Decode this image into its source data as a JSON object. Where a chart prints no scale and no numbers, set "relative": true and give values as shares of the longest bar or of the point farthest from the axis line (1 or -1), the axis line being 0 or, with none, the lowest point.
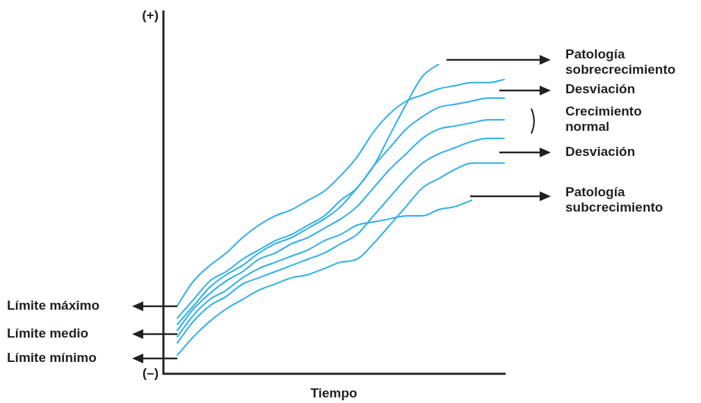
{
  "chart_data": {
    "type": "line",
    "relative": true,
    "xlabel": "Tiempo",
    "legend": false,
    "marker": "none",
    "line_style": "solid",
    "categories": [
      null,
      null,
      null,
      null,
      null,
      null,
      null,
      null,
      null,
      null,
      null,
      null,
      null,
      null,
      null,
      null,
      null,
      null,
      null,
      null,
      null
    ],
    "series": [
      {
        "color": "#38b2e8",
        "values": [
          0.22,
          0.3,
          0.35,
          0.39,
          0.44,
          0.48,
          0.51,
          0.53,
          0.56,
          0.59,
          0.64,
          0.7,
          0.78,
          0.84,
          0.88,
          0.9,
          0.92,
          0.93,
          0.94,
          0.94,
          0.95
        ]
      },
      {
        "color": "#38b2e8",
        "values": [
          0.18,
          0.24,
          0.3,
          0.33,
          0.37,
          0.4,
          0.43,
          0.45,
          0.48,
          0.51,
          0.56,
          0.6,
          0.67,
          0.73,
          0.79,
          0.83,
          0.86,
          0.87,
          0.88,
          0.89,
          0.89
        ]
      },
      {
        "color": "#38b2e8",
        "values": [
          0.16,
          0.22,
          0.28,
          0.32,
          0.35,
          0.39,
          0.42,
          0.44,
          0.47,
          0.5,
          0.54,
          0.6,
          0.67,
          0.77,
          0.87,
          0.96,
          1,
          null,
          null,
          null,
          null
        ]
      },
      {
        "color": "#38b2e8",
        "values": [
          0.14,
          0.21,
          0.26,
          0.3,
          0.33,
          0.37,
          0.39,
          0.42,
          0.44,
          0.47,
          0.5,
          0.54,
          0.6,
          0.66,
          0.71,
          0.76,
          0.79,
          0.8,
          0.81,
          0.82,
          0.82
        ]
      },
      {
        "color": "#38b2e8",
        "values": [
          0.12,
          0.19,
          0.24,
          0.27,
          0.31,
          0.34,
          0.36,
          0.38,
          0.4,
          0.43,
          0.45,
          0.48,
          0.49,
          0.5,
          0.51,
          0.51,
          0.53,
          0.54,
          0.56,
          null,
          null
        ]
      },
      {
        "color": "#38b2e8",
        "values": [
          0.1,
          0.17,
          0.22,
          0.25,
          0.29,
          0.31,
          0.33,
          0.35,
          0.37,
          0.39,
          0.42,
          0.45,
          0.51,
          0.57,
          0.63,
          0.68,
          0.71,
          0.73,
          0.75,
          0.76,
          0.76
        ]
      },
      {
        "color": "#38b2e8",
        "values": [
          0.06,
          0.12,
          0.17,
          0.21,
          0.24,
          0.27,
          0.29,
          0.31,
          0.32,
          0.34,
          0.36,
          0.37,
          0.42,
          0.48,
          0.54,
          0.6,
          0.63,
          0.66,
          0.68,
          0.68,
          0.68
        ]
      }
    ],
    "annotations": [
      "(+)",
      "(–)",
      "Límite máximo",
      "Límite medio",
      "Límite mínimo",
      "Patología sobrecrecimiento",
      "Desviación",
      "Crecimiento normal",
      "Desviación",
      "Patología subcrecimiento"
    ]
  }
}
